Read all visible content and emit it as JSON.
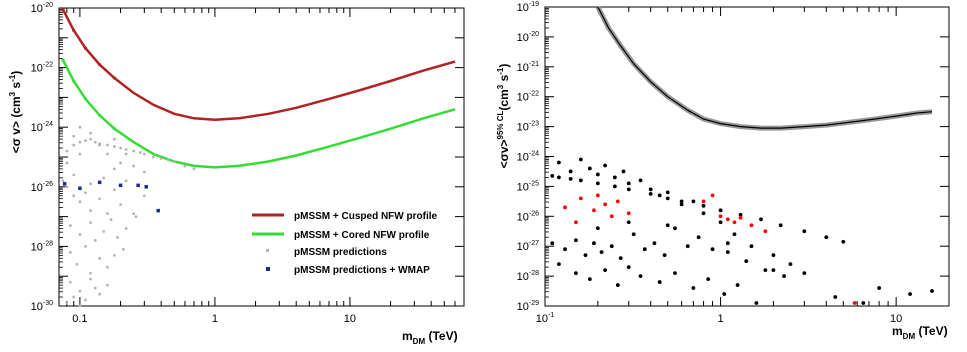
{
  "chart_data": [
    {
      "type": "scatter",
      "x_scale": "log",
      "y_scale": "log",
      "xlim": [
        0.07,
        70
      ],
      "ylim": [
        1e-30,
        1e-20
      ],
      "xlabel": "m",
      "xlabel_sub": "DM",
      "xlabel_unit": "(TeV)",
      "ylabel": "<σ v> (cm",
      "ylabel_sup": "3",
      "ylabel_end": " s",
      "ylabel_sup2": "-1",
      "ylabel_close": ")",
      "x_ticks": [
        {
          "value": 0.1,
          "label": "0.1"
        },
        {
          "value": 1,
          "label": "1"
        },
        {
          "value": 10,
          "label": "10"
        }
      ],
      "y_ticks": [
        {
          "exp": -20,
          "base": "10",
          "sup": "-20"
        },
        {
          "exp": -22,
          "base": "10",
          "sup": "-22"
        },
        {
          "exp": -24,
          "base": "10",
          "sup": "-24"
        },
        {
          "exp": -26,
          "base": "10",
          "sup": "-26"
        },
        {
          "exp": -28,
          "base": "10",
          "sup": "-28"
        },
        {
          "exp": -30,
          "base": "10",
          "sup": "-30"
        }
      ],
      "series": [
        {
          "name": "pMSSM + Cusped NFW profile",
          "color": "#b22222",
          "x": [
            0.075,
            0.09,
            0.11,
            0.14,
            0.18,
            0.25,
            0.35,
            0.5,
            0.7,
            1.0,
            1.5,
            2.5,
            4,
            7,
            12,
            20,
            35,
            60
          ],
          "y_log10": [
            -20.05,
            -20.75,
            -21.35,
            -21.9,
            -22.35,
            -22.85,
            -23.25,
            -23.55,
            -23.7,
            -23.75,
            -23.7,
            -23.55,
            -23.35,
            -23.05,
            -22.75,
            -22.45,
            -22.1,
            -21.8
          ]
        },
        {
          "name": "pMSSM + Cored NFW profile",
          "color": "#33dd33",
          "x": [
            0.075,
            0.09,
            0.11,
            0.14,
            0.18,
            0.25,
            0.35,
            0.5,
            0.7,
            1.0,
            1.5,
            2.5,
            4,
            7,
            12,
            20,
            35,
            60
          ],
          "y_log10": [
            -21.75,
            -22.45,
            -23.05,
            -23.6,
            -24.05,
            -24.5,
            -24.9,
            -25.15,
            -25.3,
            -25.35,
            -25.3,
            -25.15,
            -24.95,
            -24.65,
            -24.35,
            -24.05,
            -23.7,
            -23.4
          ]
        },
        {
          "name": "pMSSM predictions",
          "color": "#b9b3ac",
          "x": [
            0.08,
            0.09,
            0.1,
            0.11,
            0.12,
            0.13,
            0.14,
            0.16,
            0.18,
            0.2,
            0.22,
            0.25,
            0.28,
            0.3,
            0.35,
            0.4,
            0.45,
            0.5,
            0.6,
            0.7,
            0.09,
            0.1,
            0.12,
            0.14,
            0.16,
            0.18,
            0.2,
            0.22,
            0.25,
            0.3,
            0.08,
            0.09,
            0.1,
            0.11,
            0.12,
            0.14,
            0.16,
            0.18,
            0.2,
            0.25,
            0.3,
            0.085,
            0.1,
            0.12,
            0.13,
            0.15,
            0.17,
            0.19,
            0.22,
            0.26,
            0.085,
            0.095,
            0.11,
            0.12,
            0.14,
            0.16,
            0.18,
            0.21,
            0.085,
            0.1,
            0.12,
            0.14,
            0.16,
            0.08,
            0.09,
            0.1,
            0.11,
            0.13,
            0.075,
            0.08,
            0.09,
            0.1,
            0.12,
            0.15,
            0.18,
            0.22
          ],
          "y_log10": [
            -24.8,
            -24.6,
            -24.5,
            -24.45,
            -24.4,
            -24.5,
            -24.55,
            -24.6,
            -24.65,
            -24.7,
            -24.75,
            -24.8,
            -24.85,
            -24.9,
            -25.0,
            -25.05,
            -25.1,
            -25.15,
            -25.3,
            -25.4,
            -24.3,
            -24.0,
            -24.2,
            -24.6,
            -24.9,
            -24.4,
            -25.2,
            -24.9,
            -25.3,
            -25.5,
            -26.0,
            -26.3,
            -26.5,
            -26.2,
            -26.8,
            -26.4,
            -26.9,
            -26.1,
            -26.6,
            -26.9,
            -26.3,
            -27.3,
            -27.6,
            -27.2,
            -27.8,
            -27.5,
            -27.1,
            -27.7,
            -27.4,
            -27.0,
            -28.2,
            -28.6,
            -28.0,
            -28.9,
            -28.4,
            -28.7,
            -28.3,
            -28.1,
            -29.2,
            -29.5,
            -29.1,
            -29.6,
            -29.3,
            -29.9,
            -29.7,
            -30.0,
            -29.8,
            -29.4,
            -25.8,
            -25.2,
            -25.6,
            -24.9,
            -25.9,
            -25.7,
            -25.4,
            -25.8
          ]
        },
        {
          "name": "pMSSM predictions + WMAP",
          "color": "#1c2a8a",
          "x": [
            0.077,
            0.1,
            0.14,
            0.2,
            0.27,
            0.31,
            0.38
          ],
          "y_log10": [
            -25.9,
            -26.05,
            -25.85,
            -25.95,
            -25.95,
            -26.0,
            -26.8
          ]
        }
      ],
      "legend_position": "bottom-right"
    },
    {
      "type": "scatter",
      "x_scale": "log",
      "y_scale": "log",
      "xlim": [
        0.1,
        20
      ],
      "ylim": [
        1e-29,
        1e-19
      ],
      "xlabel": "m",
      "xlabel_sub": "DM",
      "xlabel_unit": "(TeV)",
      "ylabel": "<σv>",
      "ylabel_sup": "95% CL",
      "ylabel_unit": "(cm",
      "ylabel_unit_sup": "3",
      "ylabel_unit_end": " s",
      "ylabel_unit_sup2": "-1",
      "ylabel_close": ")",
      "x_ticks": [
        {
          "value": 0.1,
          "base": "10",
          "sup": "-1"
        },
        {
          "value": 1,
          "label": "1"
        },
        {
          "value": 10,
          "label": "10"
        }
      ],
      "y_ticks": [
        {
          "exp": -19,
          "base": "10",
          "sup": "-19"
        },
        {
          "exp": -20,
          "base": "10",
          "sup": "-20"
        },
        {
          "exp": -21,
          "base": "10",
          "sup": "-21"
        },
        {
          "exp": -22,
          "base": "10",
          "sup": "-22"
        },
        {
          "exp": -23,
          "base": "10",
          "sup": "-23"
        },
        {
          "exp": -24,
          "base": "10",
          "sup": "-24"
        },
        {
          "exp": -25,
          "base": "10",
          "sup": "-25"
        },
        {
          "exp": -26,
          "base": "10",
          "sup": "-26"
        },
        {
          "exp": -27,
          "base": "10",
          "sup": "-27"
        },
        {
          "exp": -28,
          "base": "10",
          "sup": "-28"
        },
        {
          "exp": -29,
          "base": "10",
          "sup": "-29"
        }
      ],
      "series": [
        {
          "type": "line",
          "color": "#000000",
          "x": [
            0.2,
            0.23,
            0.27,
            0.32,
            0.4,
            0.5,
            0.65,
            0.8,
            1.0,
            1.3,
            1.7,
            2.2,
            3,
            4,
            5.5,
            7.5,
            10,
            13,
            16
          ],
          "y_log10": [
            -19.0,
            -19.7,
            -20.3,
            -20.9,
            -21.5,
            -22.0,
            -22.45,
            -22.75,
            -22.9,
            -23.0,
            -23.05,
            -23.05,
            -23.0,
            -22.95,
            -22.85,
            -22.75,
            -22.65,
            -22.55,
            -22.5
          ]
        },
        {
          "color": "#000000",
          "x": [
            0.11,
            0.12,
            0.14,
            0.16,
            0.2,
            0.25,
            0.3,
            0.4,
            0.5,
            0.6,
            0.8,
            1.0,
            1.3,
            1.7,
            2.2,
            3,
            4,
            5,
            0.12,
            0.14,
            0.16,
            0.18,
            0.2,
            0.22,
            0.25,
            0.28,
            0.3,
            0.35,
            0.4,
            0.45,
            0.5,
            0.6,
            0.7,
            0.8,
            1.0,
            1.2,
            1.5,
            2.0,
            2.5,
            3.0,
            0.11,
            0.13,
            0.15,
            0.17,
            0.19,
            0.21,
            0.24,
            0.27,
            0.32,
            0.37,
            0.42,
            0.48,
            0.55,
            0.65,
            0.75,
            0.9,
            1.1,
            1.4,
            1.8,
            2.3,
            0.12,
            0.15,
            0.18,
            0.22,
            0.26,
            0.3,
            0.35,
            0.45,
            0.55,
            0.7,
            0.85,
            1.05,
            1.25,
            1.6,
            0.2,
            0.3,
            0.5,
            1.1,
            2.0,
            4.5,
            6.5,
            8,
            12,
            16
          ],
          "y_log10": [
            -24.65,
            -24.7,
            -24.75,
            -24.8,
            -24.9,
            -25.0,
            -25.1,
            -25.25,
            -25.4,
            -25.5,
            -25.65,
            -25.8,
            -25.95,
            -26.1,
            -26.3,
            -26.5,
            -26.7,
            -26.85,
            -24.2,
            -24.5,
            -24.1,
            -24.4,
            -24.6,
            -24.3,
            -24.7,
            -24.5,
            -24.9,
            -24.8,
            -25.1,
            -25.3,
            -25.2,
            -25.6,
            -25.5,
            -25.9,
            -26.2,
            -26.6,
            -27.0,
            -27.3,
            -27.6,
            -27.9,
            -26.9,
            -27.1,
            -26.8,
            -27.3,
            -26.9,
            -27.2,
            -27.0,
            -27.4,
            -26.6,
            -27.1,
            -26.9,
            -27.3,
            -26.4,
            -27.0,
            -26.7,
            -27.1,
            -27.2,
            -27.5,
            -27.8,
            -28.0,
            -27.6,
            -27.9,
            -28.1,
            -27.8,
            -28.3,
            -27.7,
            -28.0,
            -28.2,
            -27.9,
            -28.4,
            -28.1,
            -28.6,
            -28.3,
            -28.9,
            -26.4,
            -26.2,
            -26.3,
            -26.9,
            -27.8,
            -28.7,
            -28.9,
            -28.4,
            -28.6,
            -28.5
          ]
        },
        {
          "color": "#ff0000",
          "x": [
            0.13,
            0.16,
            0.19,
            0.22,
            0.26,
            0.3,
            0.15,
            0.2,
            0.24,
            0.8,
            0.9,
            1.0,
            1.1,
            1.2,
            1.3,
            1.5,
            1.8,
            5.8
          ],
          "y_log10": [
            -25.7,
            -25.4,
            -25.8,
            -25.6,
            -25.5,
            -25.9,
            -26.2,
            -25.3,
            -26.0,
            -25.5,
            -25.3,
            -26.0,
            -26.1,
            -26.2,
            -26.05,
            -26.3,
            -26.5,
            -28.9
          ]
        }
      ]
    }
  ]
}
